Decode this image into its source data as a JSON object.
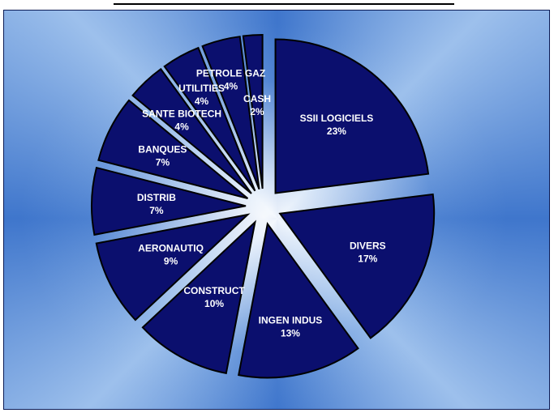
{
  "chart_data": {
    "type": "pie",
    "title": "",
    "legend": "none",
    "slices": [
      {
        "category": "SSII  LOGICIELS",
        "label": "23%",
        "value": 23
      },
      {
        "category": "DIVERS",
        "label": "17%",
        "value": 17
      },
      {
        "category": "INGEN INDUS",
        "label": "13%",
        "value": 13
      },
      {
        "category": "CONSTRUCT",
        "label": "10%",
        "value": 10
      },
      {
        "category": "AERONAUTIQ",
        "label": "9%",
        "value": 9
      },
      {
        "category": "DISTRIB",
        "label": "7%",
        "value": 7
      },
      {
        "category": "BANQUES",
        "label": "7%",
        "value": 7
      },
      {
        "category": "SANTE BIOTECH",
        "label": "4%",
        "value": 4
      },
      {
        "category": "UTILITIES",
        "label": "4%",
        "value": 4
      },
      {
        "category": "PETROLE  GAZ",
        "label": "4%",
        "value": 4
      },
      {
        "category": "CASH",
        "label": "2%",
        "value": 2
      }
    ],
    "colors": {
      "slice_fill": "#0b0f6e",
      "slice_stroke": "#000000",
      "label_color": "#ffffff"
    }
  }
}
